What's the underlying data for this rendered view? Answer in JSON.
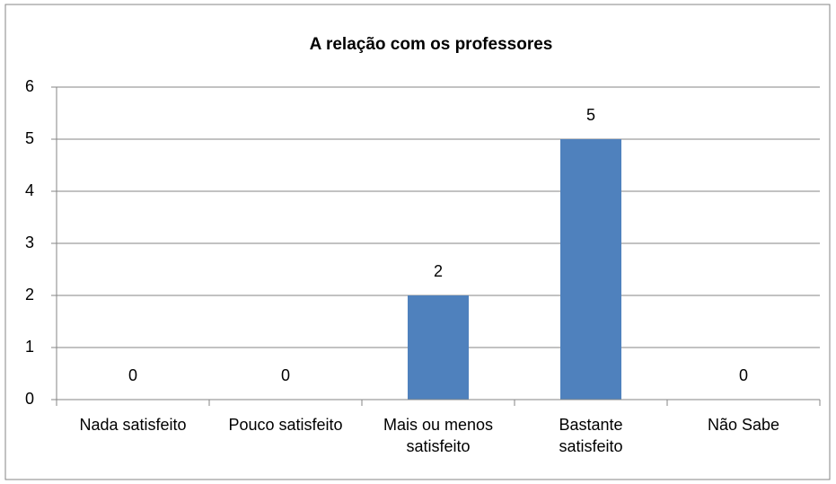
{
  "chart_data": {
    "type": "bar",
    "title": "A relação com os professores",
    "categories": [
      "Nada satisfeito",
      "Pouco satisfeito",
      "Mais ou menos satisfeito",
      "Bastante satisfeito",
      "Não Sabe"
    ],
    "values": [
      0,
      0,
      2,
      5,
      0
    ],
    "color": "#4f81bd",
    "ylim": [
      0,
      6
    ],
    "yticks": [
      0,
      1,
      2,
      3,
      4,
      5,
      6
    ],
    "grid": true
  }
}
